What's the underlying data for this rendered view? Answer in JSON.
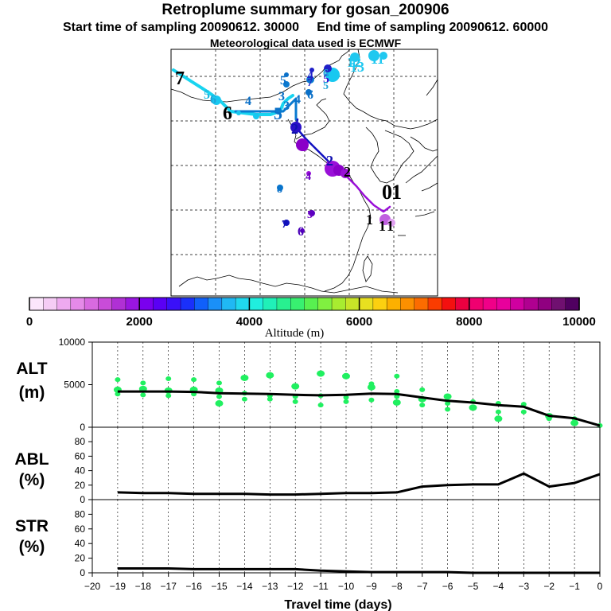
{
  "title": "Retroplume summary for gosan_200906",
  "subtitle_start": "Start time of sampling 20090612. 30000",
  "subtitle_end": "End time of sampling 20090612. 60000",
  "subtitle_met": "Meteorological data used is ECMWF",
  "colorbar": {
    "label": "Altitude  (m)",
    "ticks": [
      "0",
      "2000",
      "4000",
      "6000",
      "8000",
      "10000"
    ],
    "range": [
      0,
      10000
    ],
    "colors": [
      "#fbe6fb",
      "#f5ccf5",
      "#eeaaf0",
      "#e58ae8",
      "#d86ae0",
      "#c94cd8",
      "#b030d4",
      "#9a16e0",
      "#7a00ee",
      "#5a00f4",
      "#3a10f8",
      "#1a30fa",
      "#1060fa",
      "#1a90f8",
      "#20b8f4",
      "#20d8ee",
      "#20eede",
      "#20f0b8",
      "#28f090",
      "#38f070",
      "#58f050",
      "#80f040",
      "#a8ec30",
      "#c8e428",
      "#e8e020",
      "#fcd010",
      "#fcb000",
      "#fc9000",
      "#fc6c00",
      "#fa3c00",
      "#f41010",
      "#ec0040",
      "#f00070",
      "#f00088",
      "#e8009c",
      "#d000a0",
      "#b00090",
      "#900080",
      "#701070",
      "#500060"
    ]
  },
  "map": {
    "trajectory_labels": [
      {
        "t": "7",
        "c": "#000000"
      },
      {
        "t": "5",
        "c": "#17b7de"
      },
      {
        "t": "6",
        "c": "#1fa3d8"
      },
      {
        "t": "6",
        "c": "#000000"
      },
      {
        "t": "4",
        "c": "#0a70c8"
      },
      {
        "t": "3",
        "c": "#0a70c8"
      },
      {
        "t": "5",
        "c": "#0a70c8"
      },
      {
        "t": "3",
        "c": "#0a70c8"
      },
      {
        "t": "4",
        "c": "#0a70c8"
      },
      {
        "t": "5",
        "c": "#0a70c8"
      },
      {
        "t": "2",
        "c": "#1010b0"
      },
      {
        "t": "3",
        "c": "#8a00c8"
      },
      {
        "t": "2",
        "c": "#1010b0"
      },
      {
        "t": "4",
        "c": "#6a00c0"
      },
      {
        "t": "8",
        "c": "#0a70c8"
      },
      {
        "t": "7",
        "c": "#1010b0"
      },
      {
        "t": "6",
        "c": "#4a00b8"
      },
      {
        "t": "5",
        "c": "#6a00c0"
      },
      {
        "t": "4",
        "c": "#2020c8"
      },
      {
        "t": "5",
        "c": "#3a10d0"
      },
      {
        "t": "7",
        "c": "#2020c8"
      },
      {
        "t": "5",
        "c": "#1fa3d8"
      },
      {
        "t": "6",
        "c": "#0a70c8"
      },
      {
        "t": "6",
        "c": "#1fa3d8"
      },
      {
        "t": "1",
        "c": "#000000"
      },
      {
        "t": "0",
        "c": "#000000"
      },
      {
        "t": "1",
        "c": "#000000"
      },
      {
        "t": "1",
        "c": "#000000"
      },
      {
        "t": "1",
        "c": "#000000"
      },
      {
        "t": "2",
        "c": "#000000"
      },
      {
        "t": "12",
        "c": "#20c8f0"
      },
      {
        "t": "13",
        "c": "#20c8f0"
      },
      {
        "t": "11",
        "c": "#20c8f0"
      }
    ]
  },
  "chart_data": [
    {
      "type": "line",
      "panel": "ALT",
      "ylabel": "ALT",
      "yunit": "(m)",
      "ylim": [
        0,
        10000
      ],
      "yticks": [
        "0",
        "5000",
        "10000"
      ],
      "x": [
        -19,
        -18,
        -17,
        -16,
        -15,
        -14,
        -13,
        -12,
        -11,
        -10,
        -9,
        -8,
        -7,
        -6,
        -5,
        -4,
        -3,
        -2,
        -1,
        0
      ],
      "values": [
        4200,
        4200,
        4200,
        4150,
        4000,
        3950,
        3900,
        3800,
        3750,
        3800,
        3950,
        3900,
        3500,
        3100,
        2900,
        2600,
        2400,
        1350,
        1050,
        200
      ],
      "scatter_color": "#20f060",
      "scatter": [
        [
          -19,
          4400
        ],
        [
          -19,
          3900
        ],
        [
          -19,
          5600
        ],
        [
          -18,
          4500
        ],
        [
          -18,
          3800
        ],
        [
          -18,
          5200
        ],
        [
          -17,
          4300
        ],
        [
          -17,
          3700
        ],
        [
          -17,
          5700
        ],
        [
          -16,
          4400
        ],
        [
          -16,
          3900
        ],
        [
          -16,
          5600
        ],
        [
          -15,
          4300
        ],
        [
          -15,
          3600
        ],
        [
          -15,
          5200
        ],
        [
          -15,
          2800
        ],
        [
          -14,
          4000
        ],
        [
          -14,
          3300
        ],
        [
          -14,
          5800
        ],
        [
          -13,
          3700
        ],
        [
          -13,
          3300
        ],
        [
          -13,
          6100
        ],
        [
          -12,
          3600
        ],
        [
          -12,
          3000
        ],
        [
          -12,
          4800
        ],
        [
          -11,
          3700
        ],
        [
          -11,
          2600
        ],
        [
          -11,
          6300
        ],
        [
          -10,
          3500
        ],
        [
          -10,
          3000
        ],
        [
          -10,
          6000
        ],
        [
          -9,
          5100
        ],
        [
          -9,
          3200
        ],
        [
          -9,
          4700
        ],
        [
          -8,
          4200
        ],
        [
          -8,
          3600
        ],
        [
          -8,
          2900
        ],
        [
          -8,
          6000
        ],
        [
          -7,
          4400
        ],
        [
          -7,
          3300
        ],
        [
          -7,
          2600
        ],
        [
          -6,
          2800
        ],
        [
          -6,
          3600
        ],
        [
          -6,
          2100
        ],
        [
          -5,
          3000
        ],
        [
          -5,
          2300
        ],
        [
          -4,
          2800
        ],
        [
          -4,
          1800
        ],
        [
          -4,
          1000
        ],
        [
          -3,
          1800
        ],
        [
          -3,
          2700
        ],
        [
          -2,
          1300
        ],
        [
          -2,
          1000
        ],
        [
          -1,
          1000
        ],
        [
          -1,
          500
        ],
        [
          0,
          200
        ]
      ],
      "xlabel": ""
    },
    {
      "type": "line",
      "panel": "ABL",
      "ylabel": "ABL",
      "yunit": "(%)",
      "ylim": [
        0,
        100
      ],
      "yticks": [
        "0",
        "20",
        "40",
        "60",
        "80"
      ],
      "x": [
        -19,
        -18,
        -17,
        -16,
        -15,
        -14,
        -13,
        -12,
        -11,
        -10,
        -9,
        -8,
        -7,
        -6,
        -5,
        -4,
        -3,
        -2,
        -1,
        0
      ],
      "values": [
        10,
        9,
        9,
        8,
        8,
        8,
        7,
        7,
        8,
        9,
        9,
        10,
        18,
        20,
        21,
        21,
        36,
        18,
        23,
        35
      ],
      "xlabel": ""
    },
    {
      "type": "line",
      "panel": "STR",
      "ylabel": "STR",
      "yunit": "(%)",
      "ylim": [
        0,
        100
      ],
      "yticks": [
        "0",
        "20",
        "40",
        "60",
        "80"
      ],
      "x": [
        -19,
        -18,
        -17,
        -16,
        -15,
        -14,
        -13,
        -12,
        -11,
        -10,
        -9,
        -8,
        -7,
        -6,
        -5,
        -4,
        -3,
        -2,
        -1,
        0
      ],
      "values": [
        6,
        6,
        6,
        5,
        5,
        5,
        5,
        5,
        3,
        2,
        1,
        1,
        1,
        1,
        0,
        0,
        0,
        0,
        0,
        0
      ],
      "xlabel": "Travel time (days)",
      "xlim": [
        -20,
        0
      ],
      "xticks": [
        "−20",
        "−19",
        "−18",
        "−17",
        "−16",
        "−15",
        "−14",
        "−13",
        "−12",
        "−11",
        "−10",
        "−9",
        "−8",
        "−7",
        "−6",
        "−5",
        "−4",
        "−3",
        "−2",
        "−1",
        "0"
      ]
    }
  ]
}
